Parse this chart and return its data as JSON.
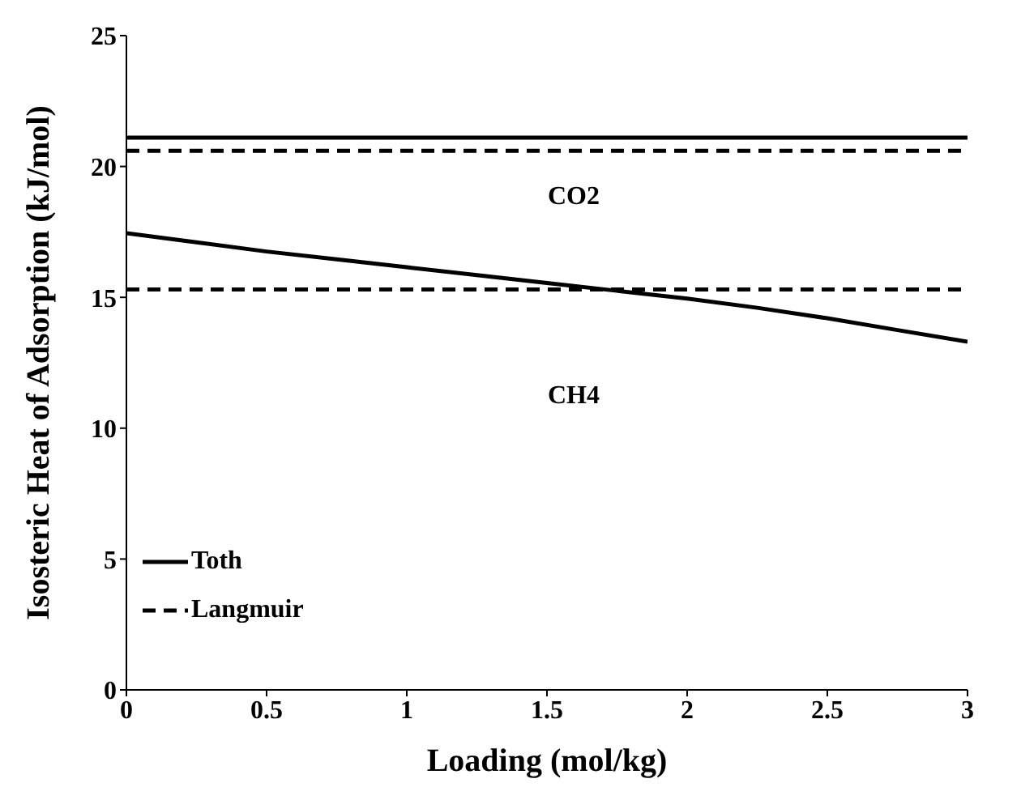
{
  "chart_data": {
    "type": "line",
    "xlabel": "Loading (mol/kg)",
    "ylabel": "Isosteric Heat of Adsorption (kJ/mol)",
    "xlim": [
      0,
      3
    ],
    "xticks": [
      0,
      0.5,
      1,
      1.5,
      2,
      2.5,
      3
    ],
    "ylim": [
      0,
      25
    ],
    "yticks": [
      0,
      5,
      10,
      15,
      20,
      25
    ],
    "grid": false,
    "legend": "bottom left",
    "marker": "none",
    "series": [
      {
        "name": "Toth",
        "color": "#000000",
        "line_style": "solid",
        "x": [
          0,
          3
        ],
        "values": [
          21.1,
          21.1
        ]
      },
      {
        "name": "Langmuir",
        "color": "#000000",
        "line_style": "dashed",
        "x": [
          0,
          3
        ],
        "values": [
          20.6,
          20.6
        ]
      },
      {
        "color": "#000000",
        "line_style": "solid",
        "x": [
          0,
          0.25,
          0.5,
          0.75,
          1,
          1.25,
          1.5,
          1.75,
          2,
          2.25,
          2.5,
          2.75,
          3
        ],
        "values": [
          17.45,
          17.1,
          16.75,
          16.45,
          16.15,
          15.85,
          15.55,
          15.25,
          14.95,
          14.6,
          14.2,
          13.75,
          13.3
        ]
      },
      {
        "color": "#000000",
        "line_style": "dashed",
        "x": [
          0,
          3
        ],
        "values": [
          15.3,
          15.3
        ]
      }
    ],
    "annotations": [
      "CO2",
      "CH4"
    ]
  }
}
